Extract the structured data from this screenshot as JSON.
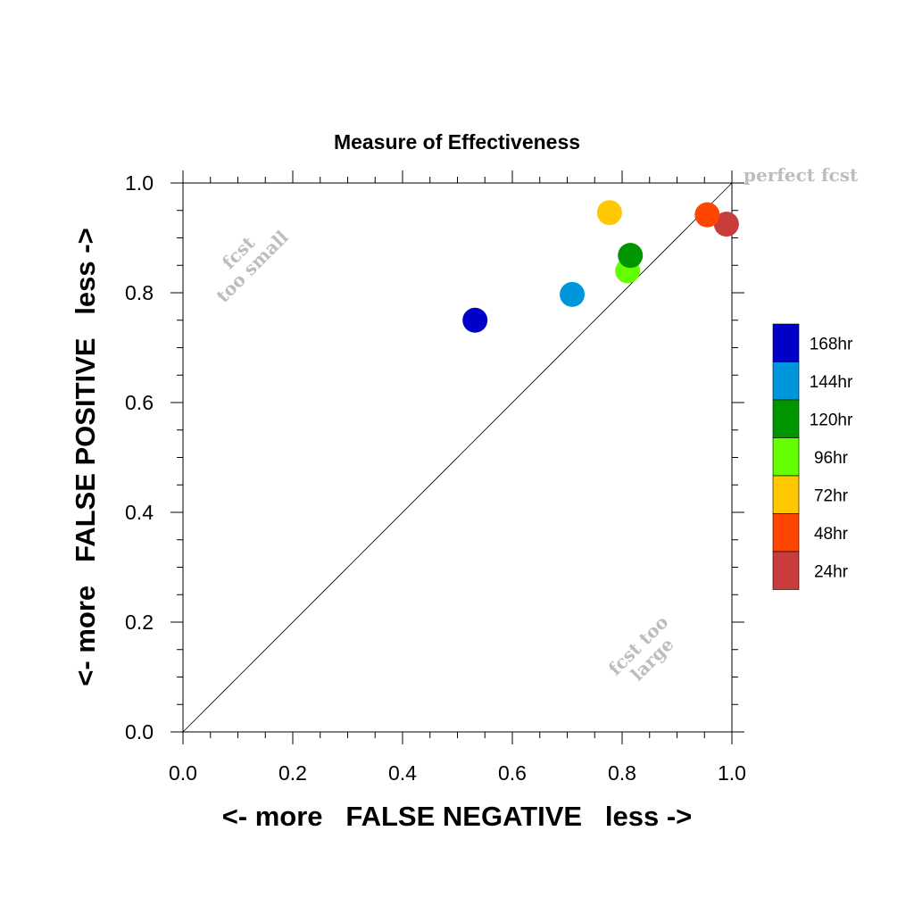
{
  "chart_data": {
    "type": "scatter",
    "title": "Measure of Effectiveness",
    "xlabel": "<- more   FALSE NEGATIVE   less ->",
    "ylabel": "<- more   FALSE POSITIVE   less ->",
    "xlim": [
      0.0,
      1.0
    ],
    "ylim": [
      0.0,
      1.0
    ],
    "xticks": [
      "0.0",
      "0.2",
      "0.4",
      "0.6",
      "0.8",
      "1.0"
    ],
    "yticks": [
      "0.0",
      "0.2",
      "0.4",
      "0.6",
      "0.8",
      "1.0"
    ],
    "grid": false,
    "diagonal_line": true,
    "annotations": {
      "perfect": "perfect fcst",
      "small_line1": "fcst",
      "small_line2": "too small",
      "large_line1": "fcst too",
      "large_line2": "large"
    },
    "legend_position": "right",
    "series": [
      {
        "name": "168hr",
        "color": "#0000c8",
        "x": 0.532,
        "y": 0.75
      },
      {
        "name": "144hr",
        "color": "#0096dc",
        "x": 0.709,
        "y": 0.797
      },
      {
        "name": "120hr",
        "color": "#009600",
        "x": 0.815,
        "y": 0.868
      },
      {
        "name": "96hr",
        "color": "#64ff00",
        "x": 0.81,
        "y": 0.84
      },
      {
        "name": "72hr",
        "color": "#ffc800",
        "x": 0.777,
        "y": 0.946
      },
      {
        "name": "48hr",
        "color": "#ff4600",
        "x": 0.955,
        "y": 0.942
      },
      {
        "name": "24hr",
        "color": "#c83c3c",
        "x": 0.99,
        "y": 0.925
      }
    ]
  }
}
